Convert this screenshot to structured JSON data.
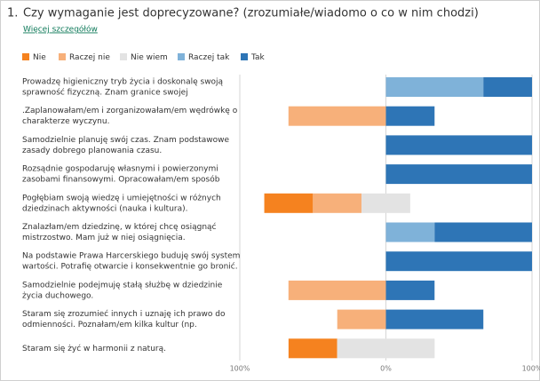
{
  "chart_data": {
    "type": "diverging_bar",
    "number": "1.",
    "title": "Czy wymaganie jest doprecyzowane? (zrozumiałe/wiadomo o co w nim chodzi)",
    "link": "Więcej szczegółów",
    "categories": [
      [
        "Prowadzę higieniczny tryb życia i doskonalę swoją",
        "sprawność fizyczną. Znam granice swojej"
      ],
      [
        ".Zaplanowałam/em i zorganizowałam/em wędrówkę o",
        "charakterze wyczynu."
      ],
      [
        "Samodzielnie planuję swój czas. Znam podstawowe",
        "zasady dobrego planowania czasu."
      ],
      [
        "Rozsądnie gospodaruję własnymi i powierzonymi",
        "zasobami finansowymi. Opracowałam/em sposób"
      ],
      [
        "Pogłębiam swoją wiedzę i umiejętności w różnych",
        "dziedzinach aktywności (nauka i kultura)."
      ],
      [
        "Znalazłam/em dziedzinę, w której chcę osiągnąć",
        "mistrzostwo. Mam już w niej osiągnięcia."
      ],
      [
        "Na podstawie Prawa Harcerskiego buduję swój system",
        "wartości. Potrafię otwarcie i konsekwentnie go bronić."
      ],
      [
        "Samodzielnie podejmuję stałą służbę w dziedzinie",
        "życia duchowego."
      ],
      [
        "Staram się zrozumieć innych i uznaję ich prawo do",
        "odmienności. Poznałam/em kilka kultur (np."
      ],
      [
        "Staram się żyć w harmonii z naturą."
      ]
    ],
    "series": [
      {
        "name": "Nie",
        "color": "#f5821f",
        "values": [
          0,
          0,
          0,
          0,
          33.3,
          0,
          0,
          0,
          0,
          33.3
        ]
      },
      {
        "name": "Raczej nie",
        "color": "#f7b07a",
        "values": [
          0,
          66.7,
          0,
          0,
          33.3,
          0,
          0,
          66.7,
          33.3,
          0
        ]
      },
      {
        "name": "Nie wiem",
        "color": "#e3e3e3",
        "values": [
          0,
          0,
          0,
          0,
          33.3,
          0,
          0,
          0,
          0,
          66.7
        ]
      },
      {
        "name": "Raczej tak",
        "color": "#7fb2d9",
        "values": [
          66.7,
          0,
          0,
          0,
          0,
          33.3,
          0,
          0,
          0,
          0
        ]
      },
      {
        "name": "Tak",
        "color": "#2e75b6",
        "values": [
          33.3,
          33.3,
          100,
          100,
          0,
          66.7,
          100,
          33.3,
          66.7,
          0
        ]
      }
    ],
    "xlim": [
      -100,
      100
    ],
    "xticks": [
      {
        "value": -100,
        "label": "100%"
      },
      {
        "value": 0,
        "label": "0%"
      },
      {
        "value": 100,
        "label": "100%"
      }
    ],
    "grid": true
  }
}
